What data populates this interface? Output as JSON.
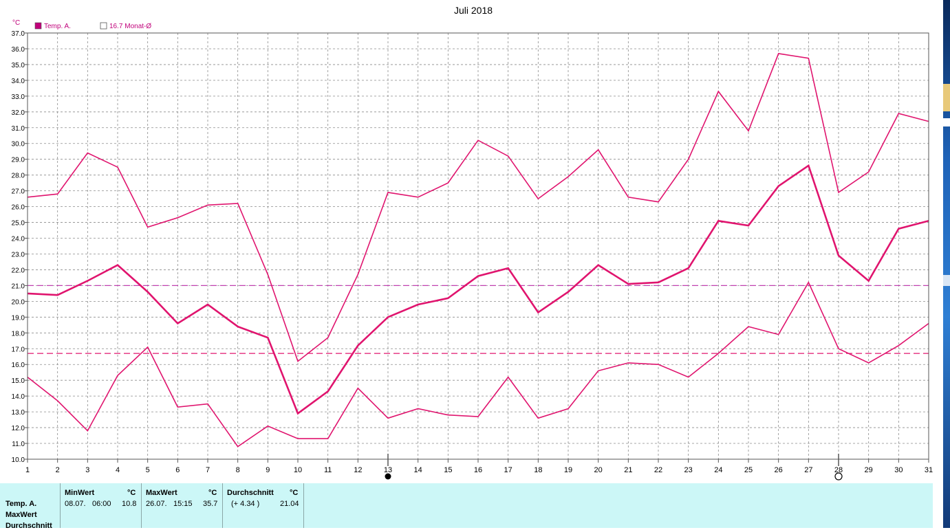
{
  "chart_data": {
    "type": "line",
    "title": "Juli 2018",
    "ylabel": "°C",
    "x": [
      1,
      2,
      3,
      4,
      5,
      6,
      7,
      8,
      9,
      10,
      11,
      12,
      13,
      14,
      15,
      16,
      17,
      18,
      19,
      20,
      21,
      22,
      23,
      24,
      25,
      26,
      27,
      28,
      29,
      30,
      31
    ],
    "ylim": [
      10.0,
      37.0
    ],
    "ytick_step": 1.0,
    "grid": true,
    "legend": [
      {
        "label": "Temp. A.",
        "marker": "filled-square"
      },
      {
        "label": "16.7 Monat-Ø",
        "marker": "empty-square"
      }
    ],
    "series": [
      {
        "name": "Temp. A.",
        "role": "average",
        "color": "#e0146e",
        "values": [
          20.5,
          20.4,
          21.3,
          22.3,
          20.6,
          18.6,
          19.8,
          18.4,
          17.7,
          12.9,
          14.3,
          17.2,
          19.0,
          19.8,
          20.2,
          21.6,
          22.1,
          19.3,
          20.6,
          22.3,
          21.1,
          21.2,
          22.1,
          25.1,
          24.8,
          27.3,
          28.6,
          22.9,
          21.3,
          24.6,
          25.1
        ]
      },
      {
        "name": "MaxWert",
        "role": "max",
        "color": "#e0146e",
        "values": [
          26.6,
          26.8,
          29.4,
          28.5,
          24.7,
          25.3,
          26.1,
          26.2,
          21.7,
          16.2,
          17.7,
          21.7,
          26.9,
          26.6,
          27.5,
          30.2,
          29.2,
          26.5,
          27.9,
          29.6,
          26.6,
          26.3,
          29.0,
          33.3,
          30.8,
          35.7,
          35.4,
          26.9,
          28.2,
          31.9,
          31.4
        ]
      },
      {
        "name": "MinWert",
        "role": "min",
        "color": "#e0146e",
        "values": [
          15.2,
          13.7,
          11.8,
          15.3,
          17.1,
          13.3,
          13.5,
          10.8,
          12.1,
          11.3,
          11.3,
          14.5,
          12.6,
          13.2,
          12.8,
          12.7,
          15.2,
          12.6,
          13.2,
          15.6,
          16.1,
          16.0,
          15.2,
          16.7,
          18.4,
          17.9,
          21.2,
          17.0,
          16.1,
          17.2,
          18.6
        ]
      }
    ],
    "reference_lines": [
      {
        "label": "16.7 Monat-Ø",
        "value": 16.7,
        "color": "#e0146e"
      },
      {
        "value": 21.0,
        "color": "#c040b0"
      }
    ],
    "moon_phases": [
      {
        "day": 13,
        "phase": "new-moon"
      },
      {
        "day": 28,
        "phase": "full-moon"
      }
    ]
  },
  "stats": {
    "row_labels": [
      "Temp. A.",
      "MaxWert",
      "Durchschnitt"
    ],
    "min": {
      "header": "MinWert",
      "unit": "°C",
      "date": "08.07.",
      "time": "06:00",
      "value": "10.8"
    },
    "max": {
      "header": "MaxWert",
      "unit": "°C",
      "date": "26.07.",
      "time": "15:15",
      "value": "35.7"
    },
    "avg": {
      "header": "Durchschnitt",
      "unit": "°C",
      "delta": "(+ 4.34 )",
      "value": "21.04"
    }
  }
}
